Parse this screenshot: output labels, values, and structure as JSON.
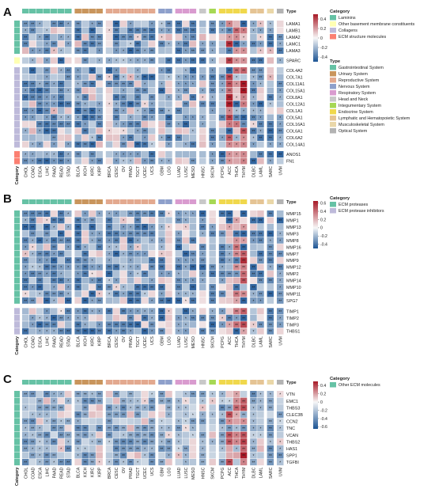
{
  "figure": {
    "type_label": "Type",
    "category_label": "Category",
    "stars": [
      "*",
      "**"
    ]
  },
  "cancers": [
    "CHOL",
    "COAD",
    "ESCA",
    "LIHC",
    "PAAD",
    "READ",
    "STAD",
    "BLCA",
    "KICH",
    "KIRC",
    "KIRP",
    "BRCA",
    "CESC",
    "OV",
    "PRAD",
    "TGCT",
    "UCEC",
    "UCS",
    "GBM",
    "LGG",
    "LUAD",
    "LUSC",
    "MESO",
    "HNSC",
    "SKCM",
    "PCPG",
    "ACC",
    "THCA",
    "THYM",
    "DLBC",
    "LAML",
    "SARC",
    "UVM"
  ],
  "cancer_types": [
    "Gastrointestinal System",
    "Gastrointestinal System",
    "Gastrointestinal System",
    "Gastrointestinal System",
    "Gastrointestinal System",
    "Gastrointestinal System",
    "Gastrointestinal System",
    "Urinary System",
    "Urinary System",
    "Urinary System",
    "Urinary System",
    "Reproductive System",
    "Reproductive System",
    "Reproductive System",
    "Reproductive System",
    "Reproductive System",
    "Reproductive System",
    "Reproductive System",
    "Nervous System",
    "Nervous System",
    "Respiratory System",
    "Respiratory System",
    "Respiratory System",
    "Head and Neck",
    "Integumentary System",
    "Endocrine System",
    "Endocrine System",
    "Endocrine System",
    "Endocrine System",
    "Lymphatic and Hematopoietic System",
    "Lymphatic and Hematopoietic System",
    "Musculoskeletal System",
    "Optical System"
  ],
  "type_colors": {
    "Gastrointestinal System": "#66c2a5",
    "Urinary System": "#c9955c",
    "Reproductive System": "#e3a98f",
    "Nervous System": "#8ea0cb",
    "Respiratory System": "#d99bcf",
    "Head and Neck": "#c8c8c8",
    "Integumentary System": "#a6d854",
    "Endocrine System": "#f0d84c",
    "Lymphatic and Hematopoietic System": "#e5c494",
    "Musculoskeletal System": "#ead7a8",
    "Optical System": "#b3b3b3"
  },
  "category_colors": {
    "Laminins": "#66c2a5",
    "Other basement membrane constituents": "#ffffb3",
    "Collagens": "#bebada",
    "ECM structure molecules": "#fb8072",
    "ECM proteases": "#66c2a5",
    "ECM protease inhibitors": "#bebada",
    "Other ECM molecules": "#66c2a5"
  },
  "panels": [
    {
      "label": "A",
      "colorbar": {
        "ticks": [
          "0.4",
          "0.2",
          "0",
          "-0.2",
          "-0.4"
        ],
        "min": -0.5,
        "max": 0.5
      },
      "legend_category": [
        "Laminins",
        "Other basement membrane constituents",
        "Collagens",
        "ECM structure molecules"
      ],
      "show_type_legend": true,
      "groups": [
        {
          "category": "Laminins",
          "genes": [
            "LAMA1",
            "LAMB1",
            "LAMA2",
            "LAMC1",
            "LAMA3"
          ]
        },
        {
          "category": "Other basement membrane constituents",
          "genes": [
            "SPARC"
          ]
        },
        {
          "category": "Collagens",
          "genes": [
            "COL4A2",
            "COL7A1",
            "COL11A1",
            "COL15A1",
            "COL8A1",
            "COL12A1",
            "COL1A1",
            "COL5A1",
            "COL16A1",
            "COL6A1",
            "COL6A2",
            "COL14A1"
          ]
        },
        {
          "category": "ECM structure molecules",
          "genes": [
            "ANOS1",
            "FN1"
          ]
        }
      ]
    },
    {
      "label": "B",
      "colorbar": {
        "ticks": [
          "0.6",
          "0.4",
          "0.2",
          "0",
          "-0.2",
          "-0.4"
        ],
        "min": -0.5,
        "max": 0.65
      },
      "legend_category": [
        "ECM proteases",
        "ECM protease inhibitors"
      ],
      "show_type_legend": false,
      "groups": [
        {
          "category": "ECM proteases",
          "genes": [
            "MMP15",
            "MMP1",
            "MMP13",
            "MMP3",
            "MMP8",
            "MMP16",
            "MMP7",
            "MMP9",
            "MMP12",
            "MMP2",
            "MMP14",
            "MMP10",
            "MMP11",
            "SPG7"
          ]
        },
        {
          "category": "ECM protease inhibitors",
          "genes": [
            "TIMP1",
            "TIMP2",
            "TIMP3",
            "THBS1"
          ]
        }
      ]
    },
    {
      "label": "C",
      "colorbar": {
        "ticks": [
          "0.4",
          "0.2",
          "0",
          "-0.2",
          "-0.4",
          "-0.6"
        ],
        "min": -0.65,
        "max": 0.5
      },
      "legend_category": [
        "Other ECM molecules"
      ],
      "show_type_legend": false,
      "groups": [
        {
          "category": "Other ECM molecules",
          "genes": [
            "VTN",
            "EMC1",
            "THBS3",
            "CLEC3B",
            "CCN2",
            "TNC",
            "VCAN",
            "THBS2",
            "HAS1",
            "SPP1",
            "TGFBI"
          ]
        }
      ]
    }
  ],
  "chart_data": [
    {
      "type": "heatmap",
      "title": "",
      "x": [
        "CHOL",
        "COAD",
        "ESCA",
        "LIHC",
        "PAAD",
        "READ",
        "STAD",
        "BLCA",
        "KICH",
        "KIRC",
        "KIRP",
        "BRCA",
        "CESC",
        "OV",
        "PRAD",
        "TGCT",
        "UCEC",
        "UCS",
        "GBM",
        "LGG",
        "LUAD",
        "LUSC",
        "MESO",
        "HNSC",
        "SKCM",
        "PCPG",
        "ACC",
        "THCA",
        "THYM",
        "DLBC",
        "LAML",
        "SARC",
        "UVM"
      ],
      "y": [
        "LAMA1",
        "LAMB1",
        "LAMA2",
        "LAMC1",
        "LAMA3",
        "SPARC",
        "COL4A2",
        "COL7A1",
        "COL11A1",
        "COL15A1",
        "COL8A1",
        "COL12A1",
        "COL1A1",
        "COL5A1",
        "COL16A1",
        "COL6A1",
        "COL6A2",
        "COL14A1",
        "ANOS1",
        "FN1"
      ],
      "value_range": [
        -0.5,
        0.5
      ],
      "note_values": "cell values estimated from color; predominantly negative (blue), positive hotspots in THYM/ACC/THCA columns"
    },
    {
      "type": "heatmap",
      "title": "",
      "x": [
        "CHOL",
        "COAD",
        "ESCA",
        "LIHC",
        "PAAD",
        "READ",
        "STAD",
        "BLCA",
        "KICH",
        "KIRC",
        "KIRP",
        "BRCA",
        "CESC",
        "OV",
        "PRAD",
        "TGCT",
        "UCEC",
        "UCS",
        "GBM",
        "LGG",
        "LUAD",
        "LUSC",
        "MESO",
        "HNSC",
        "SKCM",
        "PCPG",
        "ACC",
        "THCA",
        "THYM",
        "DLBC",
        "LAML",
        "SARC",
        "UVM"
      ],
      "y": [
        "MMP15",
        "MMP1",
        "MMP13",
        "MMP3",
        "MMP8",
        "MMP16",
        "MMP7",
        "MMP9",
        "MMP12",
        "MMP2",
        "MMP14",
        "MMP10",
        "MMP11",
        "SPG7",
        "TIMP1",
        "TIMP2",
        "TIMP3",
        "THBS1"
      ],
      "value_range": [
        -0.5,
        0.65
      ]
    },
    {
      "type": "heatmap",
      "title": "",
      "x": [
        "CHOL",
        "COAD",
        "ESCA",
        "LIHC",
        "PAAD",
        "READ",
        "STAD",
        "BLCA",
        "KICH",
        "KIRC",
        "KIRP",
        "BRCA",
        "CESC",
        "OV",
        "PRAD",
        "TGCT",
        "UCEC",
        "UCS",
        "GBM",
        "LGG",
        "LUAD",
        "LUSC",
        "MESO",
        "HNSC",
        "SKCM",
        "PCPG",
        "ACC",
        "THCA",
        "THYM",
        "DLBC",
        "LAML",
        "SARC",
        "UVM"
      ],
      "y": [
        "VTN",
        "EMC1",
        "THBS3",
        "CLEC3B",
        "CCN2",
        "TNC",
        "VCAN",
        "THBS2",
        "HAS1",
        "SPP1",
        "TGFBI"
      ],
      "value_range": [
        -0.65,
        0.5
      ]
    }
  ]
}
